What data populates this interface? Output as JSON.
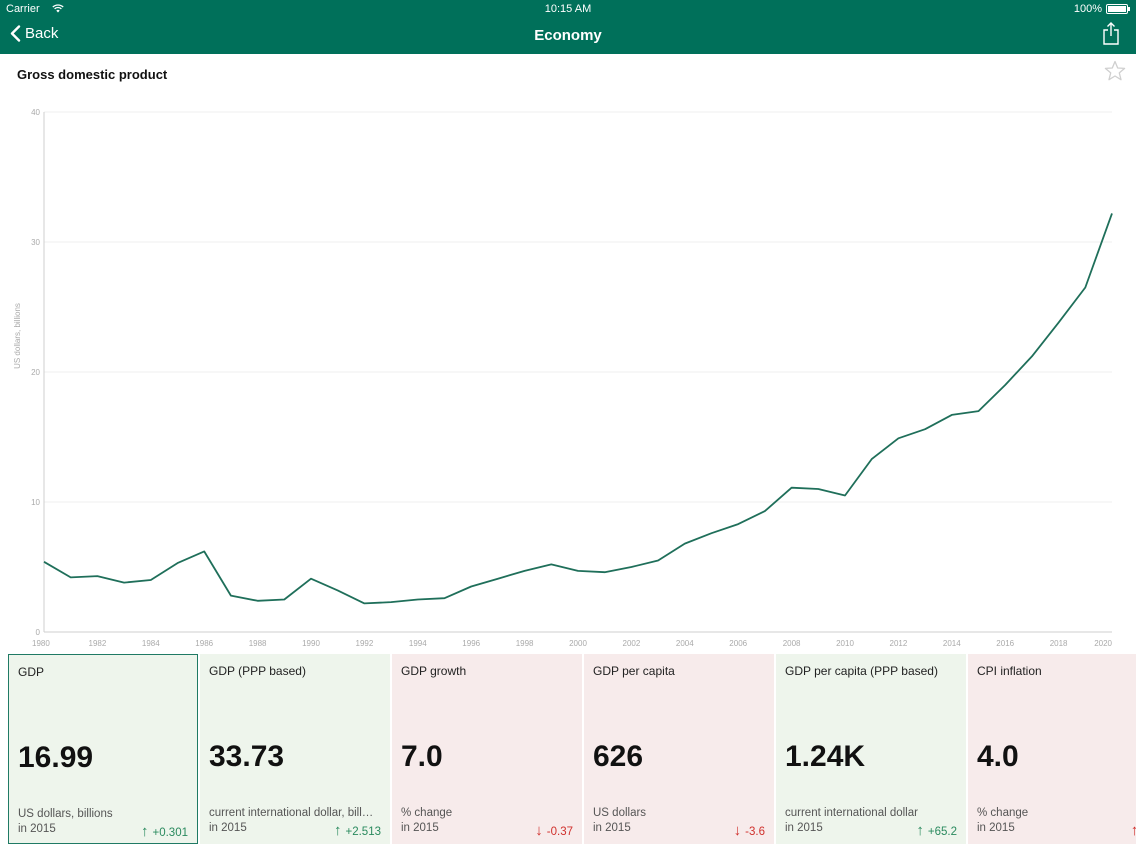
{
  "status_bar": {
    "carrier": "Carrier",
    "time": "10:15 AM",
    "battery": "100%"
  },
  "nav": {
    "back_label": "Back",
    "title": "Economy"
  },
  "page": {
    "title": "Gross domestic product"
  },
  "colors": {
    "accent": "#00705a",
    "line": "#1f6f5a",
    "up": "#2a8a5e",
    "down": "#d0302c"
  },
  "chart_data": {
    "type": "line",
    "title": "Gross domestic product",
    "ylabel": "US dollars, billions",
    "xlim": [
      1980,
      2020
    ],
    "ylim": [
      0,
      40
    ],
    "yticks": [
      0,
      10,
      20,
      30,
      40
    ],
    "xticks": [
      1980,
      1982,
      1984,
      1986,
      1988,
      1990,
      1992,
      1994,
      1996,
      1998,
      2000,
      2002,
      2004,
      2006,
      2008,
      2010,
      2012,
      2014,
      2016,
      2018,
      2020
    ],
    "grid": true,
    "series": [
      {
        "x": [
          1980,
          1981,
          1982,
          1983,
          1984,
          1985,
          1986,
          1987,
          1988,
          1989,
          1990,
          1991,
          1992,
          1993,
          1994,
          1995,
          1996,
          1997,
          1998,
          1999,
          2000,
          2001,
          2002,
          2003,
          2004,
          2005,
          2006,
          2007,
          2008,
          2009,
          2010,
          2011,
          2012,
          2013,
          2014,
          2015,
          2016,
          2017,
          2018,
          2019,
          2020
        ],
        "y": [
          5.4,
          4.2,
          4.3,
          3.8,
          4.0,
          5.3,
          6.2,
          2.8,
          2.4,
          2.5,
          4.1,
          3.2,
          2.2,
          2.3,
          2.5,
          2.6,
          3.5,
          4.1,
          4.7,
          5.2,
          4.7,
          4.6,
          5.0,
          5.5,
          6.8,
          7.6,
          8.3,
          9.3,
          11.1,
          11.0,
          10.5,
          13.3,
          14.9,
          15.6,
          16.7,
          16.99,
          19.0,
          21.2,
          23.8,
          26.5,
          32.2
        ]
      }
    ]
  },
  "cards": [
    {
      "title": "GDP",
      "value": "16.99",
      "unit": "US dollars, billions",
      "year": "in 2015",
      "arrow": "↑",
      "change": "+0.301",
      "trend": "up",
      "tone": "green",
      "selected": true
    },
    {
      "title": "GDP (PPP based)",
      "value": "33.73",
      "unit": "current international dollar, billions",
      "year": "in 2015",
      "arrow": "↑",
      "change": "+2.513",
      "trend": "up",
      "tone": "green",
      "selected": false
    },
    {
      "title": "GDP growth",
      "value": "7.0",
      "unit": "% change",
      "year": "in 2015",
      "arrow": "↓",
      "change": "-0.37",
      "trend": "down",
      "tone": "red",
      "selected": false
    },
    {
      "title": "GDP per capita",
      "value": "626",
      "unit": "US dollars",
      "year": "in 2015",
      "arrow": "↓",
      "change": "-3.6",
      "trend": "down",
      "tone": "red",
      "selected": false
    },
    {
      "title": "GDP per capita (PPP based)",
      "value": "1.24K",
      "unit": "current international dollar",
      "year": "in 2015",
      "arrow": "↑",
      "change": "+65.2",
      "trend": "up",
      "tone": "green",
      "selected": false
    },
    {
      "title": "CPI inflation",
      "value": "4.0",
      "unit": "% change",
      "year": "in 2015",
      "arrow": "↑",
      "change": "+",
      "trend": "down",
      "tone": "red",
      "selected": false
    }
  ]
}
